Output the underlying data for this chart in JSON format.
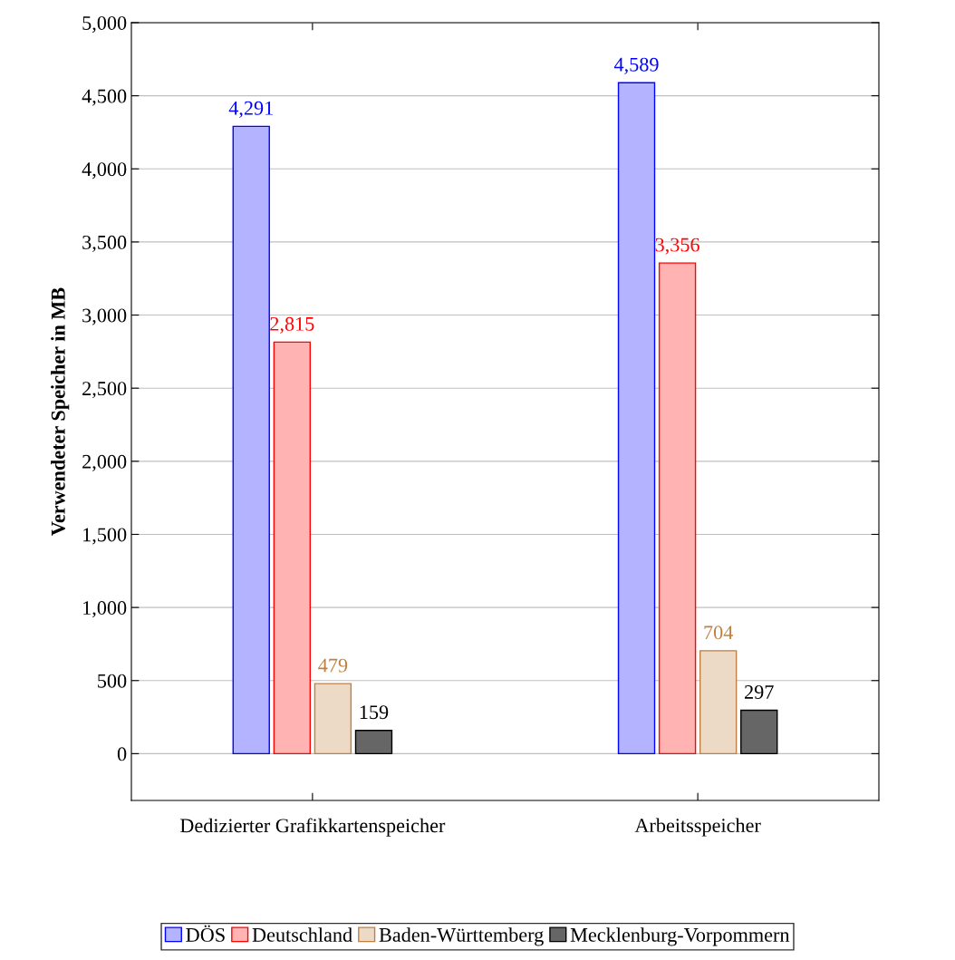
{
  "chart_data": {
    "type": "bar",
    "ylabel": "Verwendeter Speicher in MB",
    "categories": [
      "Dedizierter Grafikkartenspeicher",
      "Arbeitsspeicher"
    ],
    "series": [
      {
        "name": "DÖS",
        "color": "#b3b3ff",
        "values": [
          4291,
          4589
        ],
        "value_labels": [
          "4,291",
          "4,589"
        ]
      },
      {
        "name": "Deutschland",
        "color": "#ffb3b3",
        "values": [
          2815,
          3356
        ],
        "value_labels": [
          "2,815",
          "3,356"
        ]
      },
      {
        "name": "Baden-Württemberg",
        "color": "#ecd9c6",
        "values": [
          479,
          704
        ],
        "value_labels": [
          "479",
          "704"
        ]
      },
      {
        "name": "Mecklenburg-Vorpommern",
        "color": "#666666",
        "values": [
          159,
          297
        ],
        "value_labels": [
          "159",
          "297"
        ]
      }
    ],
    "ylim": [
      -320,
      5000
    ],
    "yticks": [
      {
        "value": 0,
        "label": "0"
      },
      {
        "value": 500,
        "label": "500"
      },
      {
        "value": 1000,
        "label": "1,000"
      },
      {
        "value": 1500,
        "label": "1,500"
      },
      {
        "value": 2000,
        "label": "2,000"
      },
      {
        "value": 2500,
        "label": "2,500"
      },
      {
        "value": 3000,
        "label": "3,000"
      },
      {
        "value": 3500,
        "label": "3,500"
      },
      {
        "value": 4000,
        "label": "4,000"
      },
      {
        "value": 4500,
        "label": "4,500"
      },
      {
        "value": 5000,
        "label": "5,000"
      }
    ],
    "grid": "y",
    "legend": "bottom"
  }
}
